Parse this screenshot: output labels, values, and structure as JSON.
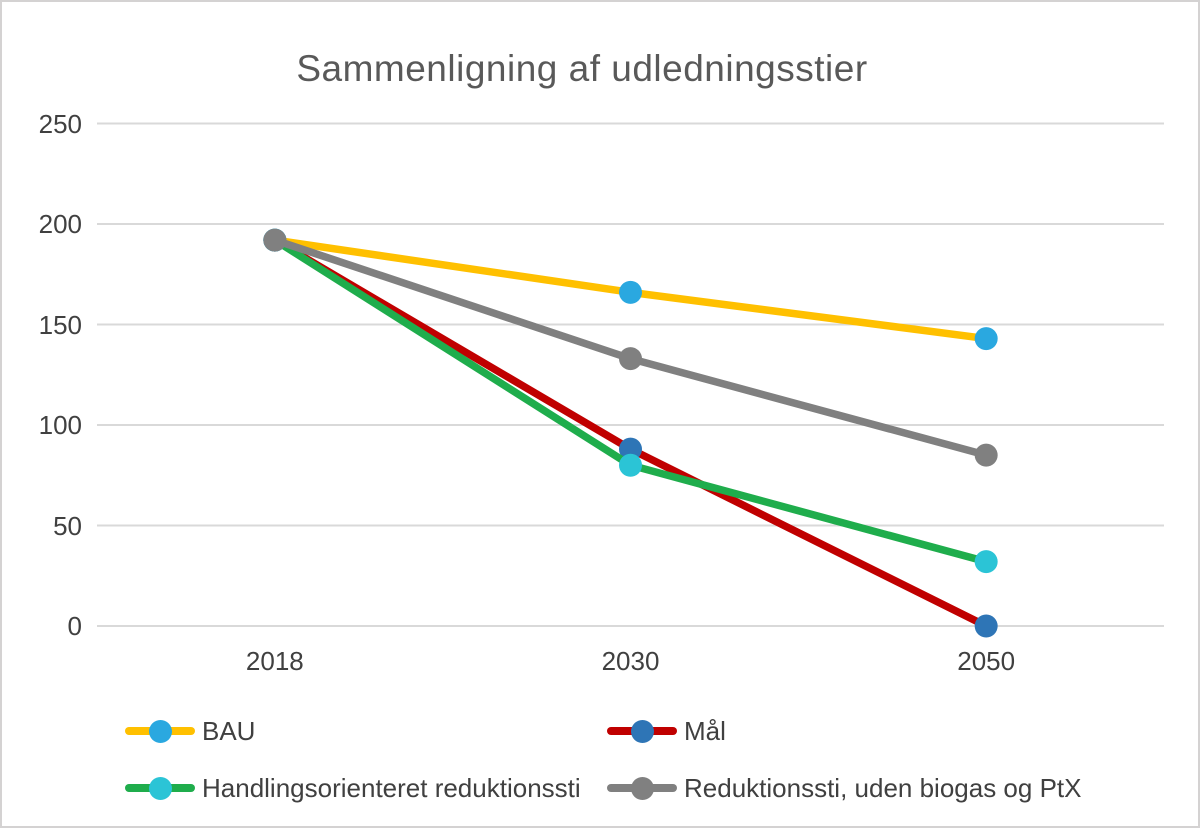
{
  "chart_data": {
    "type": "line",
    "title": "Sammenligning af udledningsstier",
    "categories": [
      "2018",
      "2030",
      "2050"
    ],
    "series": [
      {
        "name": "BAU",
        "values": [
          192,
          166,
          143
        ],
        "line_color": "#FFC000",
        "marker_color": "#2AA8E0"
      },
      {
        "name": "Mål",
        "values": [
          192,
          88,
          0
        ],
        "line_color": "#C00000",
        "marker_color": "#2E75B6"
      },
      {
        "name": "Handlingsorienteret reduktionssti",
        "values": [
          192,
          80,
          32
        ],
        "line_color": "#1FAD4C",
        "marker_color": "#2BC4D6"
      },
      {
        "name": "Reduktionssti, uden biogas og PtX",
        "values": [
          192,
          133,
          85
        ],
        "line_color": "#808080",
        "marker_color": "#808080"
      }
    ],
    "y_ticks": [
      0,
      50,
      100,
      150,
      200,
      250
    ],
    "ylim": [
      0,
      250
    ],
    "xlabel": "",
    "ylabel": "",
    "grid": "horizontal",
    "legend_position": "bottom",
    "colors": {
      "gridline": "#D9D9D9",
      "title_text": "#595959",
      "axis_text": "#404040",
      "background": "#FFFFFF",
      "frame_border": "#D4D2D2"
    }
  }
}
